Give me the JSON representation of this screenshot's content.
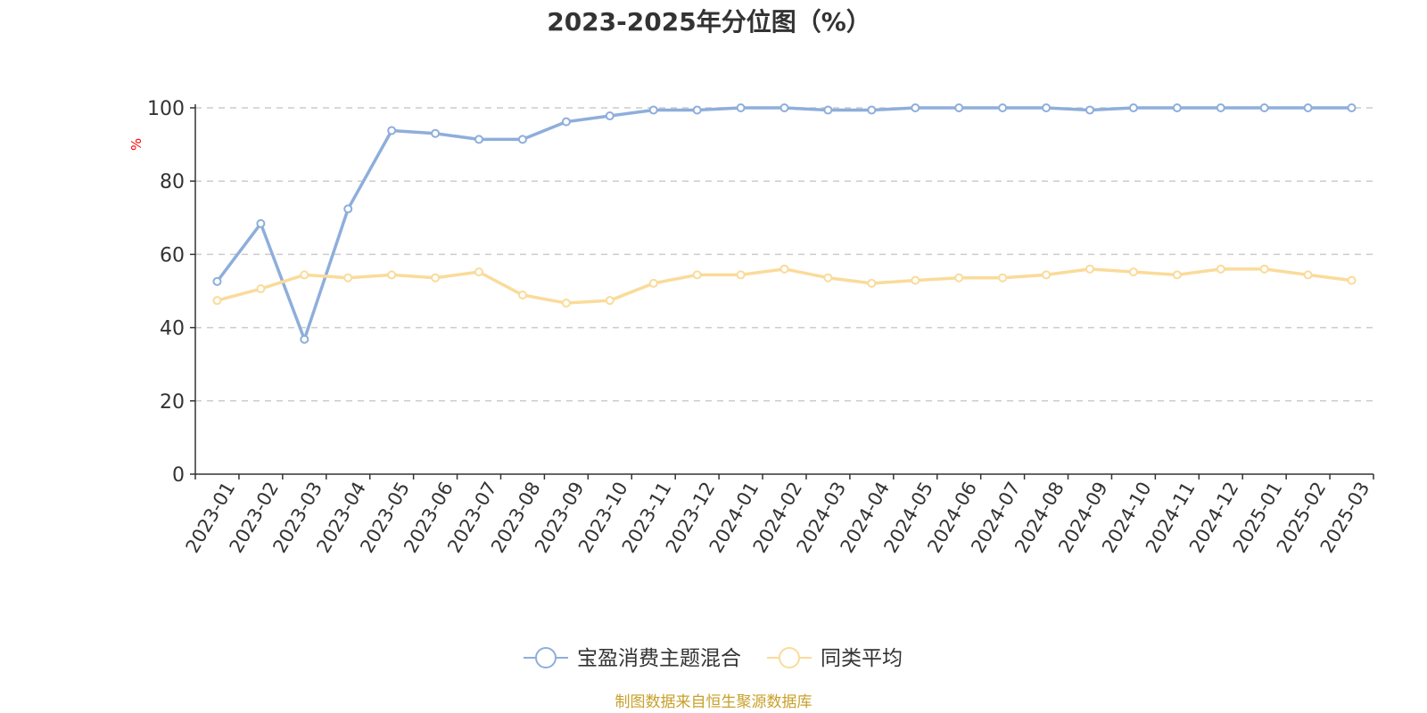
{
  "colors": {
    "series1": "#8eaedb",
    "series2": "#fadb9a",
    "source": "#c8a02a",
    "unit": "#ff0000",
    "axis": "#333333",
    "grid": "#cccccc"
  },
  "chart_data": {
    "type": "line",
    "title": "2023-2025年分位图（%）",
    "ylabel": "%",
    "xlabel": "",
    "ylim": [
      0,
      100
    ],
    "yticks": [
      "0",
      "20",
      "40",
      "60",
      "80",
      "100"
    ],
    "grid": "horizontal-dashed",
    "legend_position": "bottom-center",
    "categories": [
      "2023-01",
      "2023-02",
      "2023-03",
      "2023-04",
      "2023-05",
      "2023-06",
      "2023-07",
      "2023-08",
      "2023-09",
      "2023-10",
      "2023-11",
      "2023-12",
      "2024-01",
      "2024-02",
      "2024-03",
      "2024-04",
      "2024-05",
      "2024-06",
      "2024-07",
      "2024-08",
      "2024-09",
      "2024-10",
      "2024-11",
      "2024-12",
      "2025-01",
      "2025-02",
      "2025-03"
    ],
    "series": [
      {
        "name": "宝盈消费主题混合",
        "values": [
          52.6,
          68.4,
          36.8,
          72.4,
          93.8,
          93.0,
          91.4,
          91.4,
          96.2,
          97.8,
          99.4,
          99.4,
          100,
          100,
          99.4,
          99.4,
          100,
          100,
          100,
          100,
          99.4,
          100,
          100,
          100,
          100,
          100,
          100
        ]
      },
      {
        "name": "同类平均",
        "values": [
          47.4,
          50.6,
          54.4,
          53.6,
          54.4,
          53.6,
          55.2,
          48.9,
          46.7,
          47.4,
          52.1,
          54.4,
          54.4,
          56.0,
          53.6,
          52.1,
          52.9,
          53.6,
          53.6,
          54.4,
          56.0,
          55.2,
          54.4,
          56.0,
          56.0,
          54.4,
          52.9
        ]
      }
    ]
  },
  "source_text": "制图数据来自恒生聚源数据库"
}
